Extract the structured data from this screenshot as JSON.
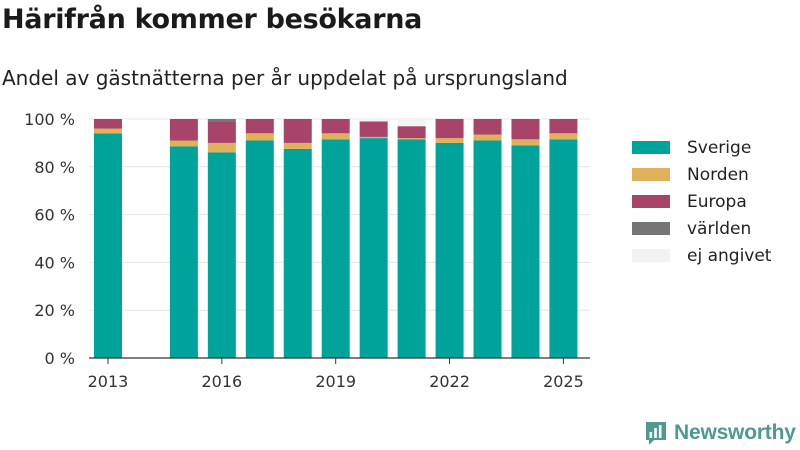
{
  "title": "Härifrån kommer besökarna",
  "subtitle": "Andel av gästnätterna per år uppdelat på ursprungsland",
  "brand": {
    "label": "Newsworthy",
    "icon": "newsworthy-logo-icon",
    "color": "#4e9a90"
  },
  "chart_data": {
    "type": "bar",
    "stacked": true,
    "x": [
      2013,
      2015,
      2016,
      2017,
      2018,
      2019,
      2020,
      2021,
      2022,
      2023,
      2024,
      2025
    ],
    "x_ticks": [
      "2013",
      "2016",
      "2019",
      "2022",
      "2025"
    ],
    "ylim": [
      0,
      100
    ],
    "y_ticks": [
      "0 %",
      "20 %",
      "40 %",
      "60 %",
      "80 %",
      "100 %"
    ],
    "grid": true,
    "legend_position": "right",
    "series": [
      {
        "name": "Sverige",
        "color": "#00a39a",
        "values": [
          94,
          88.5,
          86,
          91,
          87.5,
          91.5,
          92,
          91.5,
          90,
          91,
          89,
          91.5
        ]
      },
      {
        "name": "Norden",
        "color": "#e0b05a",
        "values": [
          2,
          2.5,
          4,
          3,
          2.5,
          2.5,
          0.5,
          0.5,
          2,
          2.5,
          2.5,
          2.5
        ]
      },
      {
        "name": "Europa",
        "color": "#a8436a",
        "values": [
          4,
          9,
          9,
          6,
          10,
          6,
          6.5,
          5,
          8,
          6.5,
          8.5,
          6
        ]
      },
      {
        "name": "världen",
        "color": "#757575",
        "values": [
          0,
          0,
          1,
          0,
          0,
          0,
          0,
          0,
          0,
          0,
          0,
          0
        ]
      },
      {
        "name": "ej angivet",
        "color": "#f3f3f5",
        "values": [
          0,
          0,
          0,
          0,
          0,
          0,
          1,
          3,
          0,
          0,
          0,
          0
        ]
      }
    ]
  }
}
